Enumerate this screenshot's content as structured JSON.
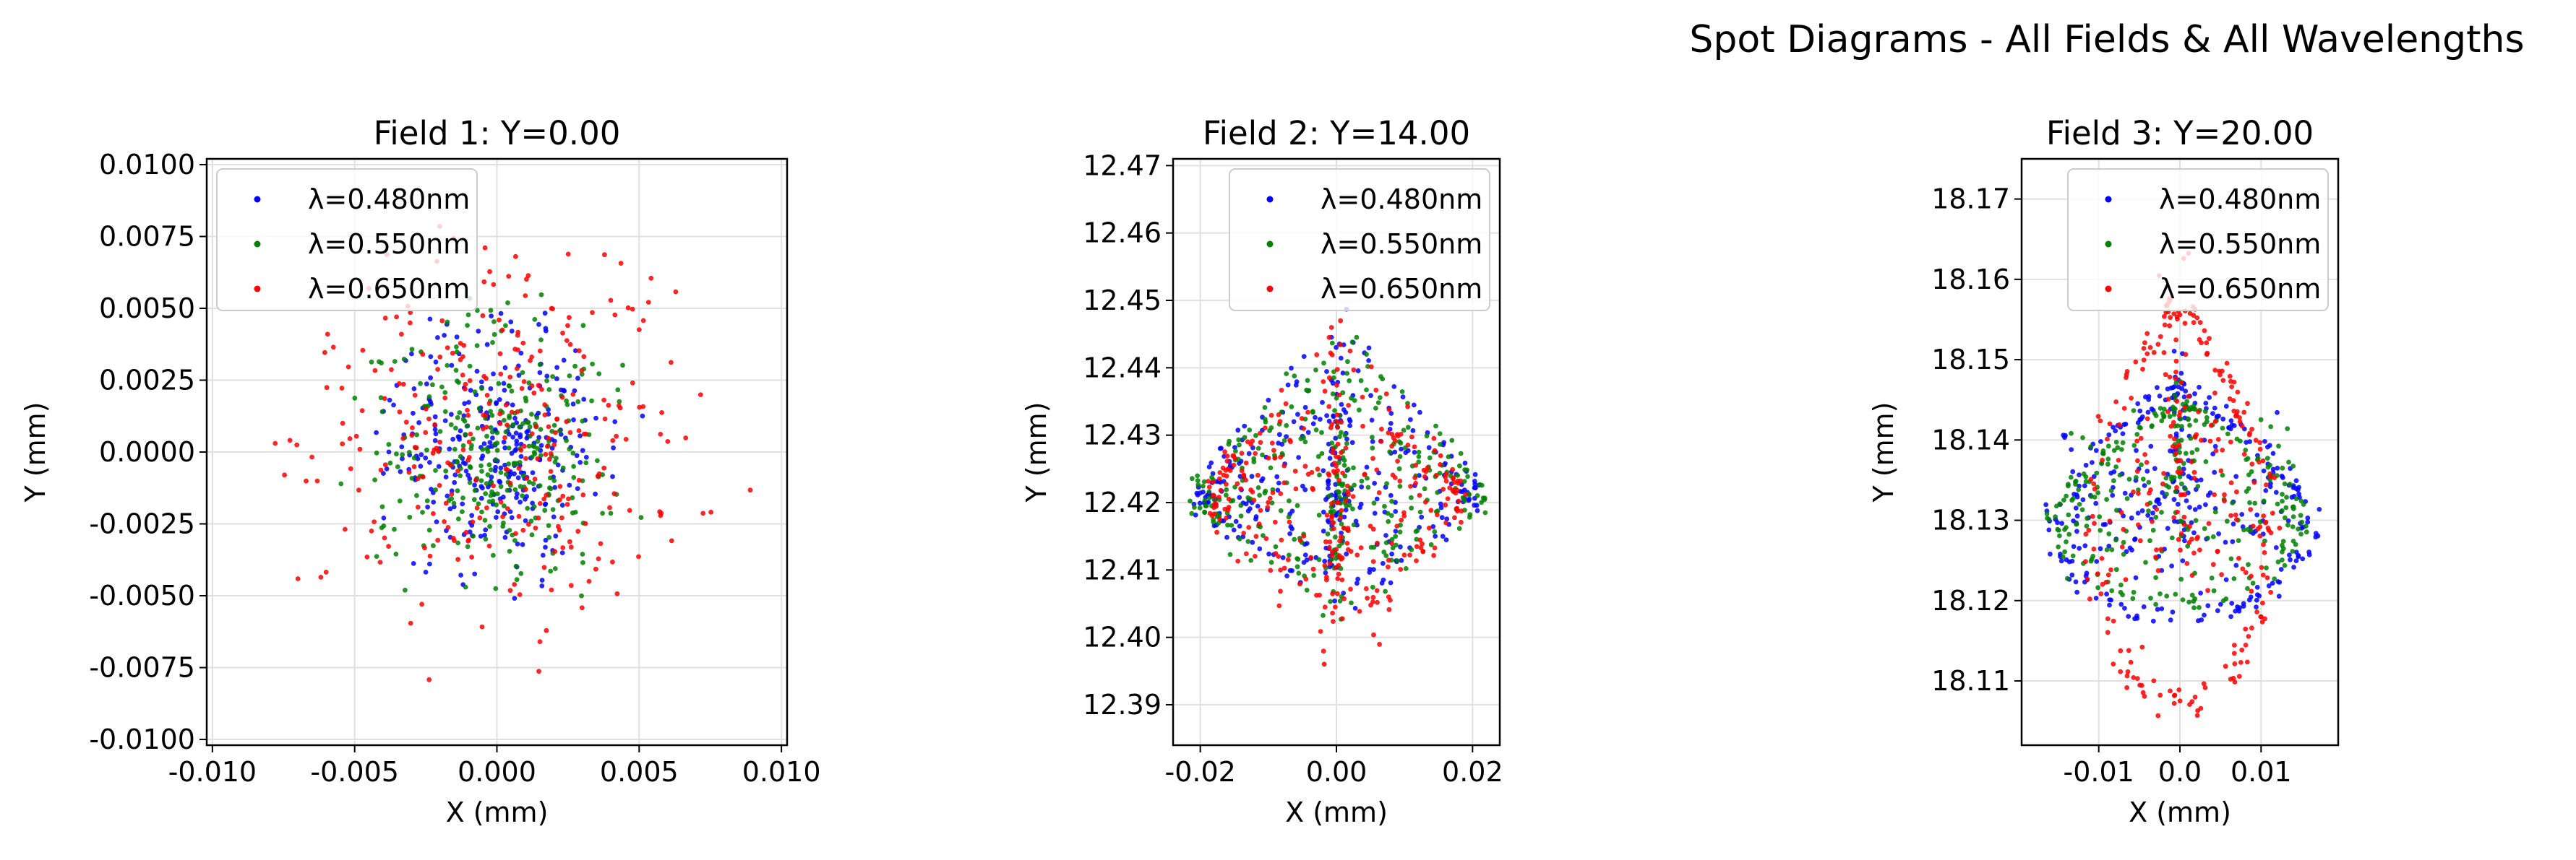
{
  "figure": {
    "suptitle": "Spot Diagrams - All Fields & All Wavelengths"
  },
  "colors": {
    "series": [
      "#0000ff",
      "#008000",
      "#ff0000"
    ],
    "grid": "#e0e0e0",
    "axes": "#000000"
  },
  "chart_data": [
    {
      "type": "scatter",
      "title": "Field 1: Y=0.00",
      "xlabel": "X (mm)",
      "ylabel": "Y (mm)",
      "xlim": [
        -0.0102,
        0.0102
      ],
      "ylim": [
        -0.0102,
        0.0102
      ],
      "xticks": [
        -0.01,
        -0.005,
        0.0,
        0.005,
        0.01
      ],
      "xtick_labels": [
        "-0.010",
        "-0.005",
        "0.000",
        "0.005",
        "0.010"
      ],
      "yticks": [
        -0.01,
        -0.0075,
        -0.005,
        -0.0025,
        0.0,
        0.0025,
        0.005,
        0.0075,
        0.01
      ],
      "ytick_labels": [
        "-0.0100",
        "-0.0075",
        "-0.0050",
        "-0.0025",
        "0.0000",
        "0.0025",
        "0.0050",
        "0.0075",
        "0.0100"
      ],
      "grid": true,
      "legend_position": "upper left",
      "series": [
        {
          "name": "λ=0.480nm",
          "color": "#0000ff",
          "pattern": "rings",
          "cx": 0,
          "cy": 0,
          "r_max": 0.0058,
          "n": 300
        },
        {
          "name": "λ=0.550nm",
          "color": "#008000",
          "pattern": "rings",
          "cx": 0,
          "cy": 0,
          "r_max": 0.0061,
          "n": 300
        },
        {
          "name": "λ=0.650nm",
          "color": "#ff0000",
          "pattern": "rings",
          "cx": 0,
          "cy": 0,
          "r_max": 0.0095,
          "n": 300
        }
      ]
    },
    {
      "type": "scatter",
      "title": "Field 2: Y=14.00",
      "xlabel": "X (mm)",
      "ylabel": "Y (mm)",
      "xlim": [
        -0.024,
        0.024
      ],
      "ylim": [
        12.384,
        12.471
      ],
      "xticks": [
        -0.02,
        0.0,
        0.02
      ],
      "xtick_labels": [
        "-0.02",
        "0.00",
        "0.02"
      ],
      "yticks": [
        12.39,
        12.4,
        12.41,
        12.42,
        12.43,
        12.44,
        12.45,
        12.46,
        12.47
      ],
      "ytick_labels": [
        "12.39",
        "12.40",
        "12.41",
        "12.42",
        "12.43",
        "12.44",
        "12.45",
        "12.46",
        "12.47"
      ],
      "grid": true,
      "legend_position": "upper right",
      "series": [
        {
          "name": "λ=0.480nm",
          "color": "#0000ff",
          "pattern": "diamond",
          "cx": 0,
          "cy": 12.421,
          "x_half": 0.021,
          "y_up": 0.028,
          "y_down": 0.018,
          "n": 320
        },
        {
          "name": "λ=0.550nm",
          "color": "#008000",
          "pattern": "diamond",
          "cx": 0,
          "cy": 12.421,
          "x_half": 0.022,
          "y_up": 0.026,
          "y_down": 0.019,
          "n": 320
        },
        {
          "name": "λ=0.650nm",
          "color": "#ff0000",
          "pattern": "diamond",
          "cx": 0,
          "cy": 12.421,
          "x_half": 0.019,
          "y_up": 0.027,
          "y_down": 0.031,
          "n": 320
        }
      ]
    },
    {
      "type": "scatter",
      "title": "Field 3: Y=20.00",
      "xlabel": "X (mm)",
      "ylabel": "Y (mm)",
      "xlim": [
        -0.0195,
        0.0195
      ],
      "ylim": [
        18.102,
        18.175
      ],
      "xticks": [
        -0.01,
        0.0,
        0.01
      ],
      "xtick_labels": [
        "-0.01",
        "0.0",
        "0.01"
      ],
      "yticks": [
        18.11,
        18.12,
        18.13,
        18.14,
        18.15,
        18.16,
        18.17
      ],
      "ytick_labels": [
        "18.11",
        "18.12",
        "18.13",
        "18.14",
        "18.15",
        "18.16",
        "18.17"
      ],
      "grid": true,
      "legend_position": "upper right",
      "series": [
        {
          "name": "λ=0.480nm",
          "color": "#0000ff",
          "pattern": "coma",
          "cx": 0,
          "cy": 18.131,
          "x_half": 0.0175,
          "y_up": 0.023,
          "y_down": 0.014,
          "n": 340
        },
        {
          "name": "λ=0.550nm",
          "color": "#008000",
          "pattern": "coma",
          "cx": 0,
          "cy": 18.131,
          "x_half": 0.0165,
          "y_up": 0.019,
          "y_down": 0.012,
          "n": 300
        },
        {
          "name": "λ=0.650nm",
          "color": "#ff0000",
          "pattern": "coma",
          "cx": 0,
          "cy": 18.133,
          "x_half": 0.0125,
          "y_up": 0.035,
          "y_down": 0.028,
          "n": 300
        }
      ]
    }
  ]
}
